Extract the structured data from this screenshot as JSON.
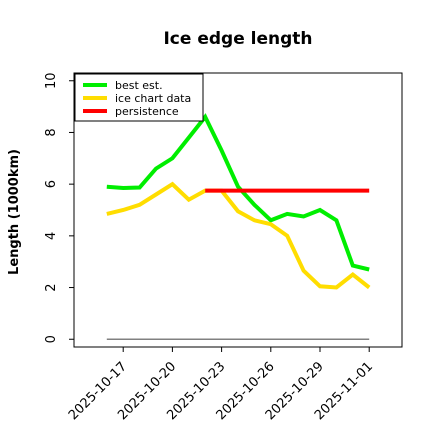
{
  "chart_data": {
    "type": "line",
    "title": "Ice edge length",
    "xlabel": "",
    "ylabel": "Length (1000km)",
    "ylim": [
      -0.3,
      10.3
    ],
    "yticks": [
      0,
      2,
      4,
      6,
      8,
      10
    ],
    "xlim": [
      "2025-10-14",
      "2025-11-03"
    ],
    "xticks": [
      "2025-10-17",
      "2025-10-20",
      "2025-10-23",
      "2025-10-26",
      "2025-10-29",
      "2025-11-01"
    ],
    "grid": false,
    "legend_position": "top-left",
    "series": [
      {
        "name": "best est.",
        "color": "#00ee00",
        "x": [
          "2025-10-16",
          "2025-10-17",
          "2025-10-18",
          "2025-10-19",
          "2025-10-20",
          "2025-10-21",
          "2025-10-22",
          "2025-10-23",
          "2025-10-24",
          "2025-10-25",
          "2025-10-26",
          "2025-10-27",
          "2025-10-28",
          "2025-10-29",
          "2025-10-30",
          "2025-10-31",
          "2025-11-01"
        ],
        "y": [
          5.9,
          5.85,
          5.87,
          6.6,
          7.0,
          7.8,
          8.6,
          7.3,
          5.9,
          5.2,
          4.6,
          4.85,
          4.75,
          5.0,
          4.6,
          2.85,
          2.7
        ]
      },
      {
        "name": "ice chart data",
        "color": "#ffdd00",
        "x": [
          "2025-10-16",
          "2025-10-17",
          "2025-10-18",
          "2025-10-19",
          "2025-10-20",
          "2025-10-21",
          "2025-10-22",
          "2025-10-23",
          "2025-10-24",
          "2025-10-25",
          "2025-10-26",
          "2025-10-27",
          "2025-10-28",
          "2025-10-29",
          "2025-10-30",
          "2025-10-31",
          "2025-11-01"
        ],
        "y": [
          4.85,
          5.0,
          5.2,
          5.6,
          6.0,
          5.4,
          5.75,
          5.75,
          4.95,
          4.6,
          4.45,
          4.0,
          2.65,
          2.05,
          2.0,
          2.5,
          2.0
        ]
      },
      {
        "name": "persistence",
        "color": "#ff0000",
        "x": [
          "2025-10-22",
          "2025-11-01"
        ],
        "y": [
          5.75,
          5.75
        ]
      },
      {
        "name": "",
        "color": "#808080",
        "x": [
          "2025-10-16",
          "2025-11-01"
        ],
        "y": [
          0.0,
          0.0
        ]
      }
    ]
  }
}
